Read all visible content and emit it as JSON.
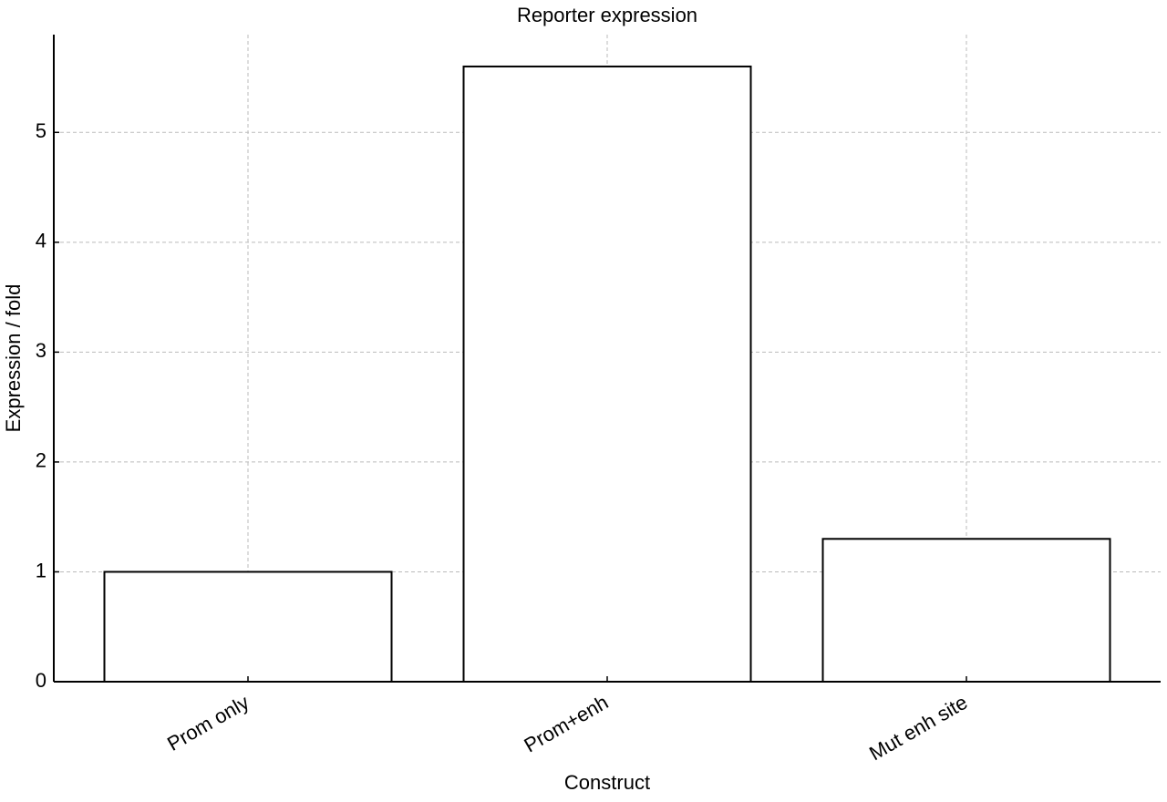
{
  "chart_data": {
    "type": "bar",
    "title": "Reporter expression",
    "x_label": "Construct",
    "y_label": "Expression / fold",
    "categories": [
      "Prom only",
      "Prom+enh",
      "Mut enh site"
    ],
    "values": [
      1.0,
      5.6,
      1.3
    ],
    "color": "#ffffff",
    "edge_color": "#000000",
    "ylim": [
      0,
      5.89
    ],
    "yticks": [
      0,
      1,
      2,
      3,
      4,
      5
    ],
    "grid": true
  }
}
